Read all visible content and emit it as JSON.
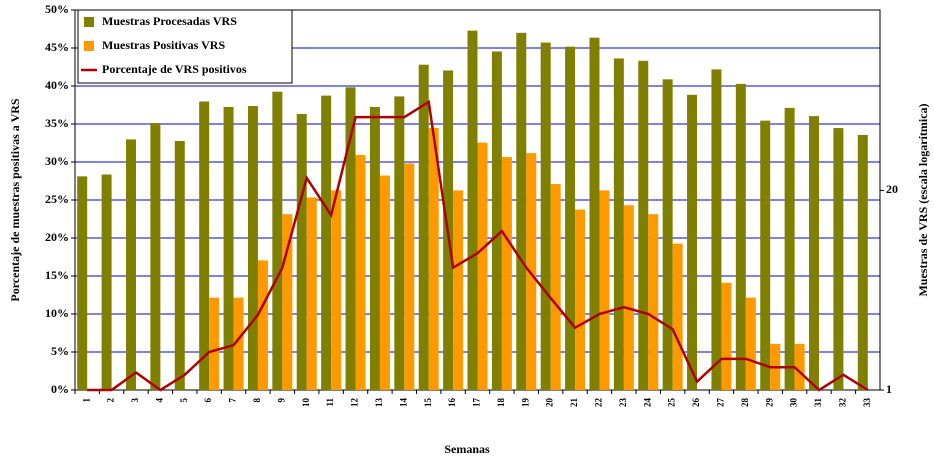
{
  "chart_data": {
    "type": "bar-line",
    "x_label": "Semanas",
    "y_label": "Porcentaje de muestras positivas a VRS",
    "y2_label": "Muestras de VRS (escala logarítmica)",
    "categories": [
      "1",
      "2",
      "3",
      "4",
      "5",
      "6",
      "7",
      "8",
      "9",
      "10",
      "11",
      "12",
      "13",
      "14",
      "15",
      "16",
      "17",
      "18",
      "19",
      "20",
      "21",
      "22",
      "23",
      "24",
      "25",
      "26",
      "27",
      "28",
      "29",
      "30",
      "31",
      "32",
      "33"
    ],
    "series": [
      {
        "name": "Muestras Procesadas VRS",
        "kind": "bar",
        "axis": "y2",
        "color": "#808000",
        "values": [
          24.7,
          25.4,
          43,
          55,
          42,
          76,
          70,
          71,
          88,
          63,
          83,
          94,
          70,
          82,
          132,
          121,
          220,
          161,
          213,
          184,
          173,
          198,
          145,
          140,
          106,
          84,
          123,
          99,
          57,
          69,
          61,
          51,
          46
        ]
      },
      {
        "name": "Muestras Positivas VRS",
        "kind": "bar",
        "axis": "y2",
        "color": "#ff9900",
        "values": [
          null,
          null,
          1,
          null,
          1,
          4,
          4,
          7,
          14,
          18,
          20,
          34,
          25,
          30,
          51,
          20,
          41,
          33,
          35,
          22,
          15,
          20,
          16,
          14,
          9,
          1,
          5,
          4,
          2,
          2,
          null,
          1,
          null
        ]
      },
      {
        "name": "Porcentaje de VRS positivos",
        "kind": "line",
        "axis": "y",
        "color": "#b00000",
        "values": [
          0,
          0,
          2.3,
          0,
          2.0,
          5.0,
          5.9,
          9.9,
          16.1,
          27.9,
          23.0,
          35.9,
          35.9,
          35.9,
          37.9,
          16.1,
          18.0,
          20.9,
          16.1,
          12.1,
          8.2,
          10.0,
          10.9,
          10.0,
          8.0,
          1.1,
          4.1,
          4.1,
          3.0,
          3.0,
          0,
          2.0,
          0
        ]
      }
    ],
    "ylim": [
      0,
      50
    ],
    "yticks": [
      {
        "value": 0,
        "label": "0%"
      },
      {
        "value": 5,
        "label": "5%"
      },
      {
        "value": 10,
        "label": "10%"
      },
      {
        "value": 15,
        "label": "15%"
      },
      {
        "value": 20,
        "label": "20%"
      },
      {
        "value": 25,
        "label": "25%"
      },
      {
        "value": 30,
        "label": "30%"
      },
      {
        "value": 35,
        "label": "35%"
      },
      {
        "value": 40,
        "label": "40%"
      },
      {
        "value": 45,
        "label": "45%"
      },
      {
        "value": 50,
        "label": "50%"
      }
    ],
    "y2lim": [
      1,
      300
    ],
    "y2scale": "log",
    "y2ticks": [
      1,
      20
    ],
    "grid": true,
    "grid_color": "#0000cc",
    "legend": "upper left"
  }
}
